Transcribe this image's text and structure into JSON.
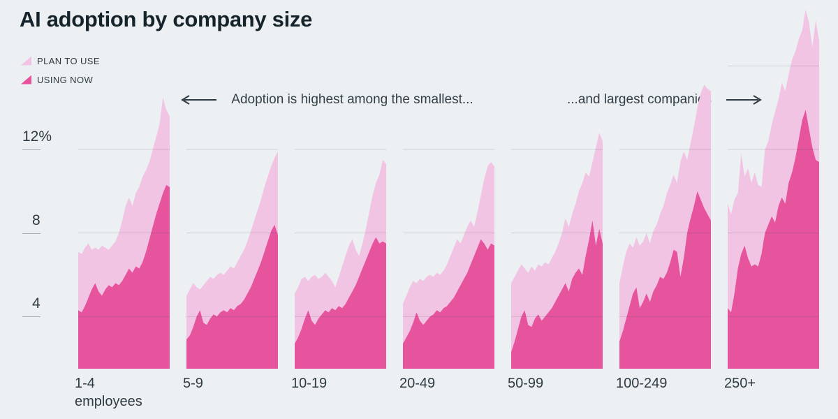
{
  "title": "AI adoption by company size",
  "legend": [
    {
      "label": "PLAN TO USE",
      "color": "#f2c4e4"
    },
    {
      "label": "USING NOW",
      "color": "#e6549e"
    }
  ],
  "annotations": {
    "left_text": "Adoption is highest among the smallest...",
    "right_text": "...and largest companies"
  },
  "colors": {
    "background": "#edf0f2",
    "plan_to_use": "#f2c4e4",
    "using_now": "#e6549e",
    "gridline": "#3c4652",
    "tick": "#a9aeb4",
    "text_dark": "#15232b",
    "text_label": "#2f3b43"
  },
  "y_axis": {
    "tick_labels": [
      {
        "label": "12%",
        "value": 12
      },
      {
        "label": "8",
        "value": 8
      },
      {
        "label": "4",
        "value": 4
      }
    ],
    "gridline_values": [
      4,
      8,
      12
    ],
    "extra_gridline_largest_panel": 16,
    "y_min_visible": 1.5,
    "unit": "percent of companies"
  },
  "chart_data": {
    "type": "area",
    "layout": "small-multiples, 7 panels, shared y axis, x is an unlabeled time index",
    "series_names": [
      "USING NOW",
      "PLAN TO USE (stacked top edge = using now + plan to use)"
    ],
    "panels": [
      {
        "category": "1-4",
        "category_suffix": "employees",
        "show_16_gridline": false,
        "using_now": [
          4.3,
          4.2,
          4.5,
          4.9,
          5.3,
          5.6,
          5.2,
          5.0,
          5.3,
          5.5,
          5.4,
          5.6,
          5.5,
          5.7,
          6.0,
          6.3,
          6.1,
          6.4,
          6.3,
          6.6,
          7.1,
          7.7,
          8.3,
          8.9,
          9.4,
          9.9,
          10.3,
          10.2
        ],
        "plan_total": [
          7.1,
          7.0,
          7.3,
          7.5,
          7.2,
          7.3,
          7.2,
          7.4,
          7.3,
          7.2,
          7.4,
          7.6,
          8.0,
          8.6,
          9.3,
          9.7,
          9.3,
          9.9,
          10.2,
          10.7,
          11.0,
          11.4,
          12.0,
          12.6,
          13.2,
          14.5,
          13.9,
          13.6
        ]
      },
      {
        "category": "5-9",
        "category_suffix": null,
        "show_16_gridline": false,
        "using_now": [
          2.9,
          3.1,
          3.5,
          4.0,
          4.3,
          3.7,
          3.6,
          3.9,
          4.1,
          4.0,
          4.2,
          4.3,
          4.2,
          4.4,
          4.3,
          4.5,
          4.6,
          4.8,
          5.1,
          5.4,
          5.8,
          6.2,
          6.6,
          7.1,
          7.6,
          8.1,
          8.4,
          7.9
        ],
        "plan_total": [
          5.0,
          5.3,
          5.6,
          5.4,
          5.3,
          5.5,
          5.7,
          5.9,
          5.8,
          6.0,
          6.1,
          6.0,
          6.2,
          6.4,
          6.3,
          6.6,
          6.9,
          7.2,
          7.6,
          8.1,
          8.6,
          9.1,
          9.6,
          10.2,
          10.7,
          11.2,
          11.6,
          11.9
        ]
      },
      {
        "category": "10-19",
        "category_suffix": null,
        "show_16_gridline": false,
        "using_now": [
          2.7,
          3.0,
          3.4,
          3.9,
          4.3,
          3.8,
          3.6,
          3.9,
          4.1,
          4.3,
          4.2,
          4.4,
          4.3,
          4.5,
          4.4,
          4.6,
          4.9,
          5.2,
          5.5,
          5.9,
          6.3,
          6.7,
          7.1,
          7.5,
          7.8,
          7.5,
          7.6,
          7.5
        ],
        "plan_total": [
          5.1,
          5.4,
          5.8,
          5.9,
          5.7,
          5.9,
          6.0,
          5.8,
          5.9,
          6.1,
          5.9,
          5.7,
          5.4,
          5.9,
          6.4,
          6.9,
          7.4,
          7.7,
          7.2,
          6.9,
          7.5,
          8.2,
          9.0,
          9.8,
          10.4,
          10.8,
          11.5,
          11.3
        ]
      },
      {
        "category": "20-49",
        "category_suffix": null,
        "show_16_gridline": false,
        "using_now": [
          2.7,
          3.0,
          3.3,
          3.7,
          4.2,
          3.8,
          3.6,
          3.8,
          4.0,
          4.1,
          4.3,
          4.2,
          4.4,
          4.5,
          4.7,
          4.9,
          5.2,
          5.5,
          5.8,
          6.1,
          6.5,
          6.9,
          7.3,
          7.7,
          7.5,
          7.2,
          7.5,
          7.4
        ],
        "plan_total": [
          4.6,
          5.0,
          5.4,
          5.7,
          5.6,
          5.8,
          5.7,
          5.9,
          6.0,
          5.9,
          6.1,
          6.0,
          6.2,
          6.5,
          6.9,
          7.3,
          7.7,
          7.5,
          7.9,
          8.3,
          8.6,
          8.3,
          9.0,
          9.8,
          10.6,
          11.2,
          11.4,
          11.2
        ]
      },
      {
        "category": "50-99",
        "category_suffix": null,
        "show_16_gridline": false,
        "using_now": [
          2.3,
          2.8,
          3.4,
          4.0,
          4.3,
          3.6,
          3.5,
          3.9,
          4.1,
          3.8,
          4.0,
          4.2,
          4.4,
          4.7,
          5.0,
          5.3,
          5.6,
          5.2,
          5.8,
          6.1,
          6.3,
          6.0,
          6.9,
          7.7,
          8.6,
          7.4,
          8.2,
          7.5
        ],
        "plan_total": [
          5.6,
          5.9,
          6.2,
          6.5,
          6.3,
          6.1,
          6.4,
          6.2,
          6.5,
          6.4,
          6.6,
          6.5,
          6.8,
          7.1,
          7.5,
          8.0,
          8.7,
          8.3,
          8.9,
          9.4,
          10.0,
          10.4,
          10.9,
          10.7,
          11.4,
          12.1,
          12.8,
          12.4
        ]
      },
      {
        "category": "100-249",
        "category_suffix": null,
        "show_16_gridline": false,
        "using_now": [
          2.8,
          3.3,
          3.9,
          4.5,
          5.1,
          5.4,
          4.4,
          4.7,
          5.1,
          4.7,
          5.2,
          5.5,
          5.9,
          5.8,
          6.1,
          6.6,
          7.2,
          7.1,
          5.9,
          6.8,
          8.0,
          8.7,
          9.3,
          10.0,
          9.6,
          9.2,
          8.9,
          8.6
        ],
        "plan_total": [
          5.6,
          6.4,
          7.1,
          7.5,
          7.3,
          7.8,
          7.4,
          7.6,
          8.0,
          7.5,
          8.1,
          8.4,
          8.9,
          9.3,
          9.9,
          10.3,
          10.8,
          10.4,
          11.4,
          11.9,
          11.5,
          12.3,
          13.1,
          14.0,
          14.7,
          15.1,
          14.9,
          14.8
        ]
      },
      {
        "category": "250+",
        "category_suffix": null,
        "show_16_gridline": true,
        "using_now": [
          4.4,
          4.2,
          5.1,
          6.3,
          7.0,
          7.4,
          6.8,
          6.4,
          6.5,
          6.4,
          7.0,
          8.0,
          8.4,
          8.8,
          8.5,
          9.3,
          9.7,
          9.4,
          10.4,
          10.9,
          11.6,
          12.5,
          13.4,
          13.9,
          13.0,
          12.1,
          11.5,
          11.4
        ],
        "plan_total": [
          9.4,
          8.9,
          9.6,
          9.9,
          11.8,
          10.7,
          11.1,
          10.4,
          10.9,
          10.3,
          10.2,
          12.0,
          12.4,
          13.2,
          13.8,
          14.4,
          15.2,
          14.8,
          15.6,
          16.3,
          16.7,
          17.3,
          17.7,
          18.7,
          18.1,
          16.9,
          18.2,
          17.2
        ]
      }
    ]
  }
}
